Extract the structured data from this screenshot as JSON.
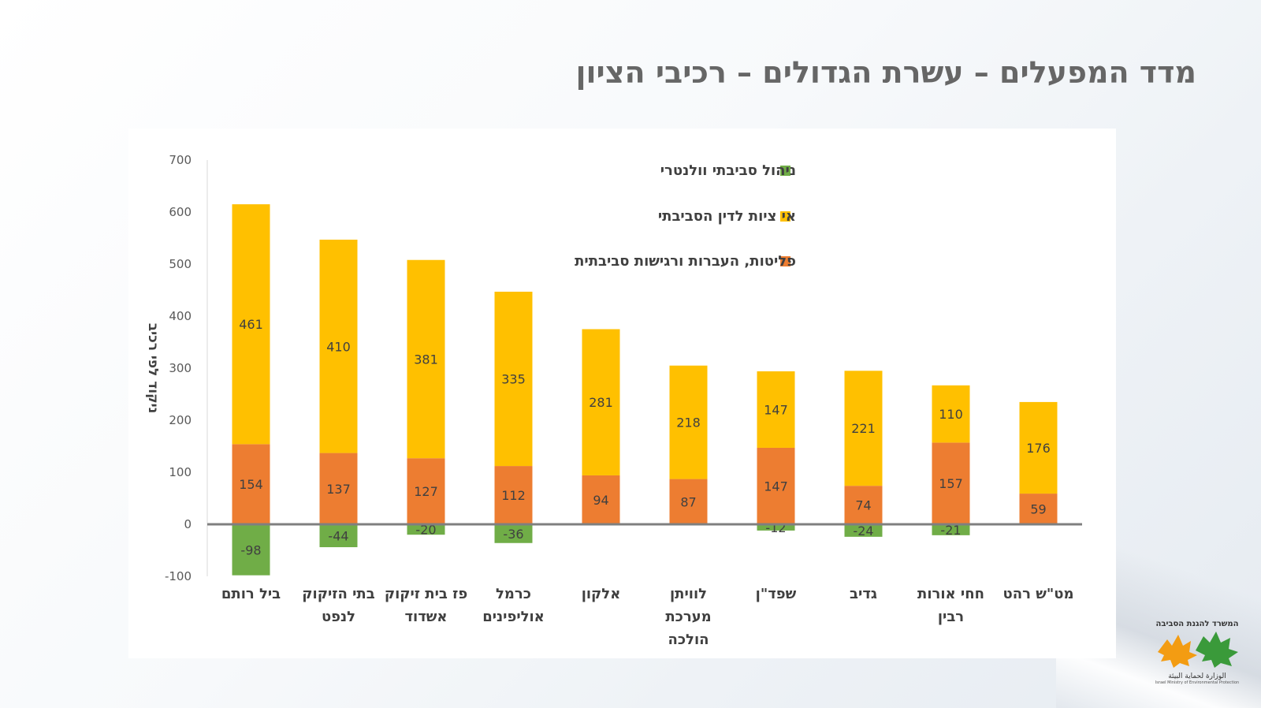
{
  "slide": {
    "title": "מדד המפעלים – עשרת הגדולים – רכיבי הציון"
  },
  "logo": {
    "top_text": "המשרד להגנת הסביבה",
    "bottom_text": "الوزارة لحماية البيئة",
    "sub_text": "Israel Ministry of Environmental Protection"
  },
  "colors": {
    "green": "#70ad47",
    "yellow": "#ffc000",
    "orange": "#ed7d31",
    "axis_line": "#7f7f7f",
    "title": "#666666"
  },
  "chart_data": {
    "type": "bar",
    "stacked": true,
    "title": "",
    "xlabel": "",
    "ylabel": "ניקוד לפי רכיב",
    "ylim": [
      -100,
      700
    ],
    "yticks": [
      700,
      600,
      500,
      400,
      300,
      200,
      100,
      0,
      -100
    ],
    "grid": false,
    "legend_position": "top-right",
    "categories": [
      [
        "ביל רותם"
      ],
      [
        "בתי הזיקוק",
        "לנפט"
      ],
      [
        "פז בית זיקוק",
        "אשדוד"
      ],
      [
        "כרמל",
        "אוליפינים"
      ],
      [
        "אלקון"
      ],
      [
        "לוויתן",
        "מערכת",
        "הולכה"
      ],
      [
        "שפד\"ן"
      ],
      [
        "גדיב"
      ],
      [
        "חחי אורות",
        "רבין"
      ],
      [
        "מט\"ש רהט"
      ]
    ],
    "series": [
      {
        "name": "פליטות, העברות ורגישות סביבתית",
        "color": "#ed7d31",
        "values": [
          154,
          137,
          127,
          112,
          94,
          87,
          147,
          74,
          157,
          59
        ]
      },
      {
        "name": "אי ציות לדין הסביבתי",
        "color": "#ffc000",
        "values": [
          461,
          410,
          381,
          335,
          281,
          218,
          147,
          221,
          110,
          176
        ]
      },
      {
        "name": "ניהול סביבתי וולנטרי",
        "color": "#70ad47",
        "values": [
          -98,
          -44,
          -20,
          -36,
          null,
          null,
          -12,
          -24,
          -21,
          null
        ]
      }
    ],
    "legend_order": [
      "ניהול סביבתי וולנטרי",
      "אי ציות לדין הסביבתי",
      "פליטות, העברות ורגישות סביבתית"
    ]
  }
}
